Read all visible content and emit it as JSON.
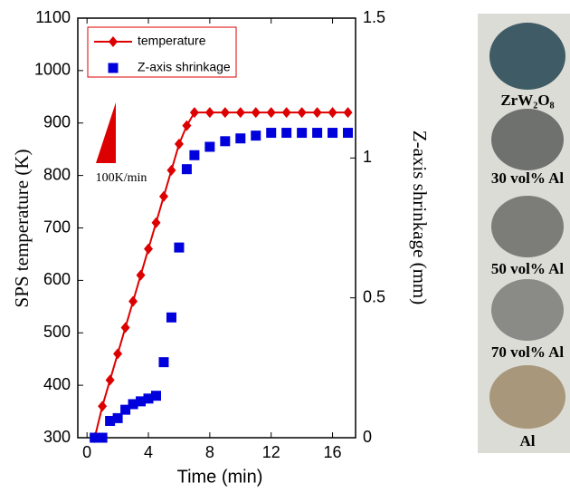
{
  "chart_data": {
    "type": "line",
    "xlabel": "Time (min)",
    "ylabel": "SPS temperature (K)",
    "y2label": "Z-axis shrinkage (mm)",
    "xlim": [
      -0.6,
      17.5
    ],
    "xticks": [
      0,
      4,
      8,
      12,
      16
    ],
    "ylim": [
      300,
      1100
    ],
    "yticks": [
      300,
      400,
      500,
      600,
      700,
      800,
      900,
      1000,
      1100
    ],
    "y2lim": [
      0,
      1.5
    ],
    "y2ticks": [
      0,
      0.5,
      1,
      1.5
    ],
    "legend": "upper left",
    "annotation": "100K/min",
    "series": [
      {
        "name": "temperature",
        "color": "#dd0000",
        "marker": "diamond",
        "line": true,
        "x": [
          0.5,
          1,
          1.5,
          2,
          2.5,
          3,
          3.5,
          4,
          4.5,
          5,
          5.5,
          6,
          6.5,
          7,
          8,
          9,
          10,
          11,
          12,
          13,
          14,
          15,
          16,
          17
        ],
        "values": [
          300,
          360,
          410,
          460,
          510,
          560,
          610,
          660,
          710,
          760,
          810,
          860,
          895,
          920,
          920,
          920,
          920,
          920,
          920,
          920,
          920,
          920,
          920,
          920
        ]
      },
      {
        "name": "Z-axis shrinkage",
        "color": "#0000dd",
        "marker": "square",
        "line": false,
        "axis": "y2",
        "x": [
          0.5,
          1,
          1.5,
          2,
          2.5,
          3,
          3.5,
          4,
          4.5,
          5,
          5.5,
          6,
          6.5,
          7,
          8,
          9,
          10,
          11,
          12,
          13,
          14,
          15,
          16,
          17
        ],
        "values": [
          0,
          0,
          0.06,
          0.07,
          0.1,
          0.12,
          0.13,
          0.14,
          0.15,
          0.27,
          0.43,
          0.68,
          0.96,
          1.01,
          1.04,
          1.06,
          1.07,
          1.08,
          1.09,
          1.09,
          1.09,
          1.09,
          1.09,
          1.09
        ]
      }
    ]
  },
  "photos": {
    "labels": [
      "ZrW₂O₈",
      "30 vol% Al",
      "50 vol% Al",
      "70 vol% Al",
      "Al"
    ]
  }
}
